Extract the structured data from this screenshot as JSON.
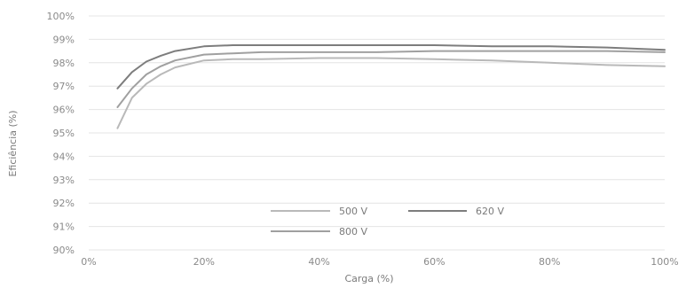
{
  "chart_data": {
    "type": "line",
    "title": "",
    "xlabel": "Carga (%)",
    "ylabel": "Eficiência (%)",
    "xlim": [
      0,
      100
    ],
    "ylim": [
      90,
      100
    ],
    "x_ticks": [
      "0%",
      "20%",
      "40%",
      "60%",
      "80%",
      "100%"
    ],
    "y_ticks": [
      "90%",
      "91%",
      "92%",
      "93%",
      "94%",
      "95%",
      "96%",
      "97%",
      "98%",
      "99%",
      "100%"
    ],
    "grid": "horizontal",
    "legend_position": "bottom-center",
    "x": [
      5,
      7.5,
      10,
      12.5,
      15,
      20,
      25,
      30,
      40,
      50,
      60,
      70,
      80,
      90,
      100
    ],
    "series": [
      {
        "name": "500 V",
        "color": "#b9b9b9",
        "values": [
          95.2,
          96.5,
          97.1,
          97.5,
          97.8,
          98.1,
          98.15,
          98.15,
          98.2,
          98.2,
          98.15,
          98.1,
          98.0,
          97.9,
          97.85
        ]
      },
      {
        "name": "620 V",
        "color": "#7d7d7d",
        "values": [
          96.9,
          97.6,
          98.05,
          98.3,
          98.5,
          98.7,
          98.75,
          98.75,
          98.75,
          98.75,
          98.75,
          98.7,
          98.7,
          98.65,
          98.55
        ]
      },
      {
        "name": "800 V",
        "color": "#a0a0a0",
        "values": [
          96.1,
          96.9,
          97.5,
          97.85,
          98.1,
          98.35,
          98.4,
          98.45,
          98.45,
          98.45,
          98.5,
          98.5,
          98.5,
          98.5,
          98.45
        ]
      }
    ]
  }
}
